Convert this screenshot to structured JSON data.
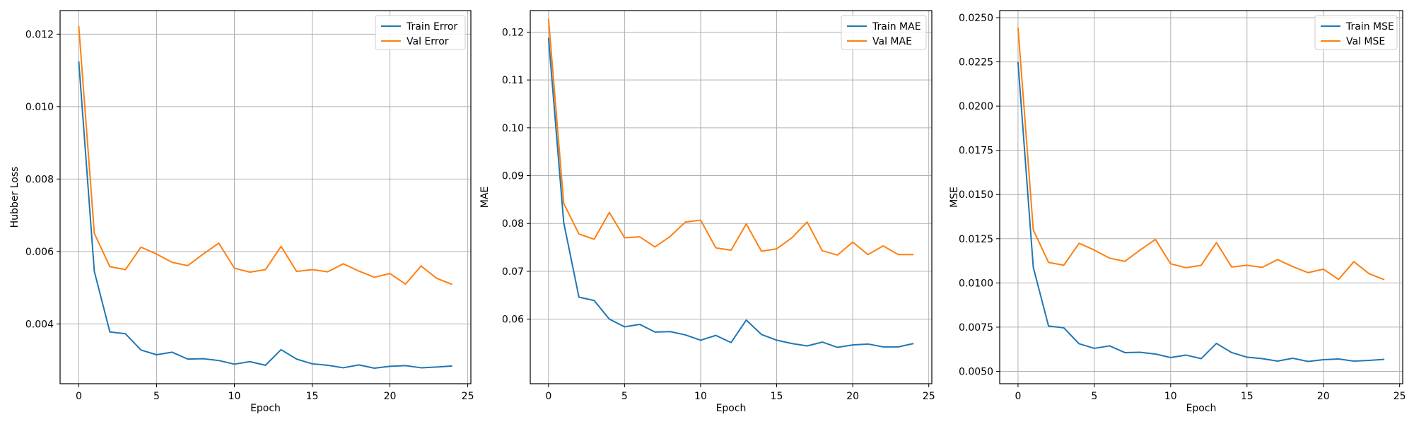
{
  "colors": {
    "train": "#1f77b4",
    "val": "#ff7f0e",
    "grid": "#b0b0b0"
  },
  "chart_data": [
    {
      "type": "line",
      "xlabel": "Epoch",
      "ylabel": "Hubber Loss",
      "xlim": [
        -1.2,
        25.2
      ],
      "ylim": [
        0.00235,
        0.01265
      ],
      "xticks": [
        0,
        5,
        10,
        15,
        20,
        25
      ],
      "yticks": [
        0.004,
        0.006,
        0.008,
        0.01,
        0.012
      ],
      "ytick_labels": [
        "0.004",
        "0.006",
        "0.008",
        "0.010",
        "0.012"
      ],
      "grid": true,
      "legend_position": "top-right",
      "x": [
        0,
        1,
        2,
        3,
        4,
        5,
        6,
        7,
        8,
        9,
        10,
        11,
        12,
        13,
        14,
        15,
        16,
        17,
        18,
        19,
        20,
        21,
        22,
        23,
        24
      ],
      "series": [
        {
          "name": "Train Error",
          "values": [
            0.01125,
            0.00545,
            0.00378,
            0.00373,
            0.00328,
            0.00315,
            0.00322,
            0.00303,
            0.00304,
            0.00299,
            0.00289,
            0.00296,
            0.00286,
            0.00329,
            0.00303,
            0.0029,
            0.00286,
            0.00279,
            0.00287,
            0.00278,
            0.00283,
            0.00285,
            0.00279,
            0.00281,
            0.00284
          ]
        },
        {
          "name": "Val Error",
          "values": [
            0.01222,
            0.0065,
            0.00558,
            0.0055,
            0.00612,
            0.00593,
            0.0057,
            0.00561,
            0.00593,
            0.00623,
            0.00554,
            0.00543,
            0.0055,
            0.00614,
            0.00545,
            0.0055,
            0.00544,
            0.00566,
            0.00546,
            0.00529,
            0.00539,
            0.0051,
            0.0056,
            0.00526,
            0.00509
          ]
        }
      ]
    },
    {
      "type": "line",
      "xlabel": "Epoch",
      "ylabel": "MAE",
      "xlim": [
        -1.2,
        25.2
      ],
      "ylim": [
        0.0465,
        0.1245
      ],
      "xticks": [
        0,
        5,
        10,
        15,
        20,
        25
      ],
      "yticks": [
        0.06,
        0.07,
        0.08,
        0.09,
        0.1,
        0.11,
        0.12
      ],
      "ytick_labels": [
        "0.06",
        "0.07",
        "0.08",
        "0.09",
        "0.10",
        "0.11",
        "0.12"
      ],
      "grid": true,
      "legend_position": "top-right",
      "x": [
        0,
        1,
        2,
        3,
        4,
        5,
        6,
        7,
        8,
        9,
        10,
        11,
        12,
        13,
        14,
        15,
        16,
        17,
        18,
        19,
        20,
        21,
        22,
        23,
        24
      ],
      "series": [
        {
          "name": "Train MAE",
          "values": [
            0.1188,
            0.0802,
            0.0646,
            0.0639,
            0.06,
            0.0584,
            0.0589,
            0.0573,
            0.0574,
            0.0567,
            0.0556,
            0.0566,
            0.0551,
            0.0598,
            0.0568,
            0.0556,
            0.0549,
            0.0544,
            0.0552,
            0.0541,
            0.0546,
            0.0548,
            0.0542,
            0.0542,
            0.0549
          ]
        },
        {
          "name": "Val MAE",
          "values": [
            0.1228,
            0.0842,
            0.0778,
            0.0767,
            0.0823,
            0.077,
            0.0772,
            0.0751,
            0.0773,
            0.0803,
            0.0807,
            0.0749,
            0.0744,
            0.0799,
            0.0742,
            0.0747,
            0.077,
            0.0803,
            0.0743,
            0.0734,
            0.0761,
            0.0735,
            0.0753,
            0.0735,
            0.0735
          ]
        }
      ]
    },
    {
      "type": "line",
      "xlabel": "Epoch",
      "ylabel": "MSE",
      "xlim": [
        -1.2,
        25.2
      ],
      "ylim": [
        0.0043,
        0.0254
      ],
      "xticks": [
        0,
        5,
        10,
        15,
        20,
        25
      ],
      "yticks": [
        0.005,
        0.0075,
        0.01,
        0.0125,
        0.015,
        0.0175,
        0.02,
        0.0225,
        0.025
      ],
      "ytick_labels": [
        "0.0050",
        "0.0075",
        "0.0100",
        "0.0125",
        "0.0150",
        "0.0175",
        "0.0200",
        "0.0225",
        "0.0250"
      ],
      "grid": true,
      "legend_position": "top-right",
      "x": [
        0,
        1,
        2,
        3,
        4,
        5,
        6,
        7,
        8,
        9,
        10,
        11,
        12,
        13,
        14,
        15,
        16,
        17,
        18,
        19,
        20,
        21,
        22,
        23,
        24
      ],
      "series": [
        {
          "name": "Train MSE",
          "values": [
            0.02248,
            0.01088,
            0.00756,
            0.00746,
            0.00656,
            0.0063,
            0.00644,
            0.00606,
            0.00608,
            0.00598,
            0.00578,
            0.00592,
            0.00572,
            0.00658,
            0.00606,
            0.0058,
            0.00572,
            0.00558,
            0.00574,
            0.00556,
            0.00566,
            0.0057,
            0.00558,
            0.00562,
            0.00568
          ]
        },
        {
          "name": "Val MSE",
          "values": [
            0.02444,
            0.013,
            0.01116,
            0.011,
            0.01224,
            0.01186,
            0.0114,
            0.01122,
            0.01186,
            0.01246,
            0.01108,
            0.01086,
            0.011,
            0.01228,
            0.0109,
            0.011,
            0.01088,
            0.01132,
            0.01092,
            0.01058,
            0.01078,
            0.0102,
            0.0112,
            0.01052,
            0.01018
          ]
        }
      ]
    }
  ]
}
